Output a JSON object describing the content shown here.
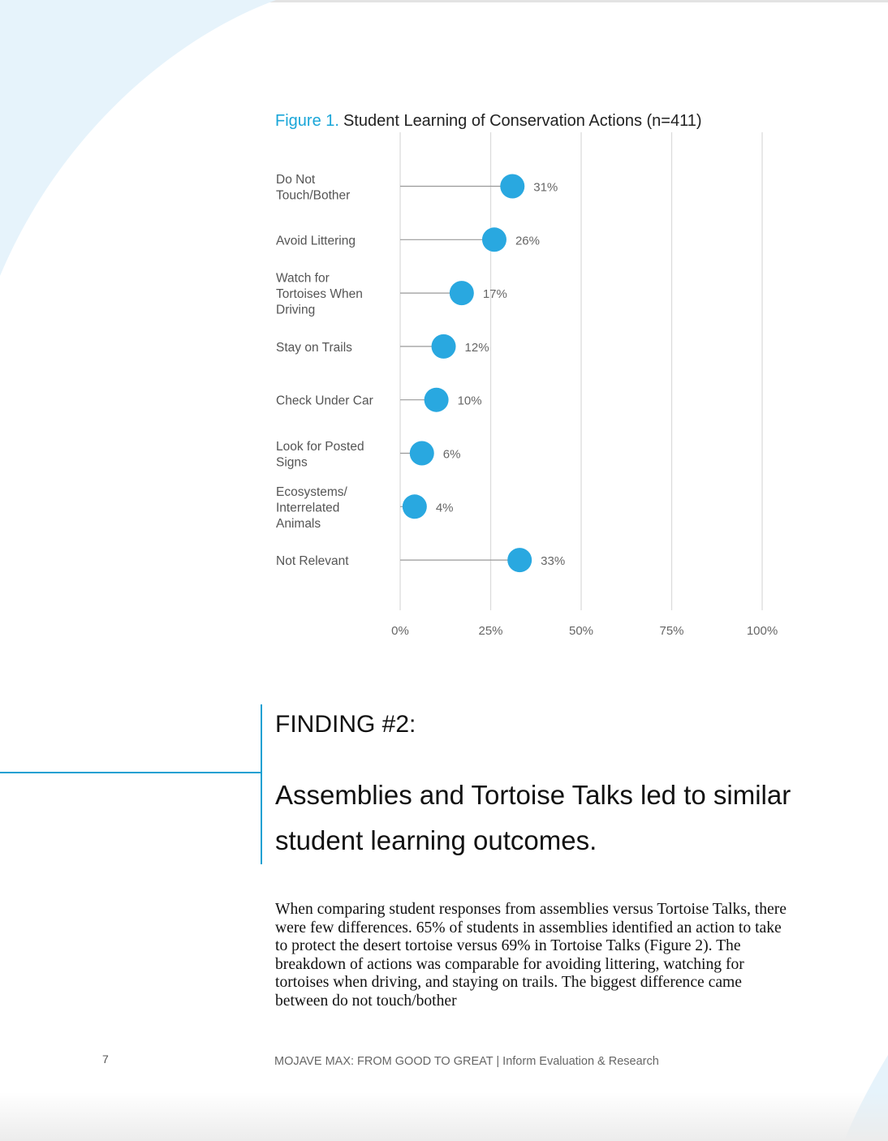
{
  "figure": {
    "number": "Figure 1.",
    "title": "Student Learning of Conservation Actions (n=411)"
  },
  "chart_data": {
    "type": "dot",
    "categories": [
      "Do Not Touch/Bother",
      "Avoid Littering",
      "Watch for Tortoises When Driving",
      "Stay on Trails",
      "Check Under Car",
      "Look for Posted Signs",
      "Ecosystems/ Interrelated Animals",
      "Not Relevant"
    ],
    "category_lines": [
      [
        "Do Not",
        "Touch/Bother"
      ],
      [
        "Avoid Littering"
      ],
      [
        "Watch for",
        "Tortoises When",
        "Driving"
      ],
      [
        "Stay on Trails"
      ],
      [
        "Check Under Car"
      ],
      [
        "Look for Posted",
        "Signs"
      ],
      [
        "Ecosystems/",
        "Interrelated",
        "Animals"
      ],
      [
        "Not Relevant"
      ]
    ],
    "values": [
      31,
      26,
      17,
      12,
      10,
      6,
      4,
      33
    ],
    "value_labels": [
      "31%",
      "26%",
      "17%",
      "12%",
      "10%",
      "6%",
      "4%",
      "33%"
    ],
    "xlim": [
      0,
      100
    ],
    "xticks": [
      0,
      25,
      50,
      75,
      100
    ],
    "xtick_labels": [
      "0%",
      "25%",
      "50%",
      "75%",
      "100%"
    ],
    "grid": true,
    "color": "#29a8e0"
  },
  "finding": {
    "label": "FINDING #2:",
    "text": "Assemblies and Tortoise Talks led to similar student learning outcomes."
  },
  "body": {
    "paragraph": "When comparing student responses from assemblies versus Tortoise Talks, there were few differences. 65% of students in assemblies identified an action to take to protect the desert tortoise versus 69% in Tortoise Talks (Figure 2). The breakdown of actions was comparable for avoiding littering, watching for tortoises when driving, and staying on trails. The biggest difference came between do not touch/bother"
  },
  "footer": {
    "page_number": "7",
    "text": "MOJAVE MAX: FROM GOOD TO GREAT | Inform Evaluation & Research"
  }
}
